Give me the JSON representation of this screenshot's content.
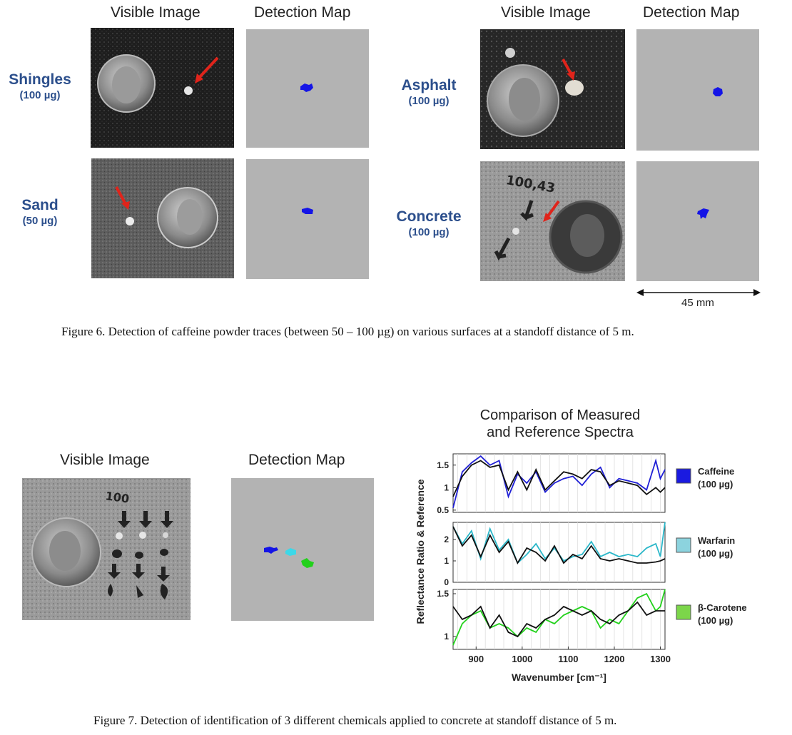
{
  "figure6": {
    "col_headers": [
      "Visible Image",
      "Detection Map",
      "Visible Image",
      "Detection Map"
    ],
    "samples": [
      {
        "name": "Shingles",
        "amount": "(100 µg)"
      },
      {
        "name": "Asphalt",
        "amount": "(100 µg)"
      },
      {
        "name": "Sand",
        "amount": "(50 µg)"
      },
      {
        "name": "Concrete",
        "amount": "(100 µg)"
      }
    ],
    "photo_marks": {
      "concrete_text": "100,43"
    },
    "scale_label": "45 mm",
    "caption": "Figure 6.  Detection of caffeine powder traces (between 50 – 100 µg) on various surfaces at a standoff distance of 5 m.",
    "detect_color": "#1414e6",
    "map_color": "#b3b3b3",
    "arrow_color": "#e0241b"
  },
  "figure7": {
    "visible_label": "Visible Image",
    "detection_label": "Detection Map",
    "photo_marks": {
      "label": "100"
    },
    "caption": "Figure 7.  Detection of identification of 3 different chemicals applied to concrete at standoff distance of 5 m.",
    "chart_data": {
      "type": "line",
      "title": "Comparison of Measured and Reference Spectra",
      "title_lines": [
        "Comparison of Measured",
        "and Reference Spectra"
      ],
      "xlabel": "Wavenumber [cm⁻¹]",
      "ylabel": "Reflectance Ratio & Reference",
      "xlim": [
        850,
        1310
      ],
      "xticks": [
        900,
        1000,
        1100,
        1200,
        1300
      ],
      "grid": true,
      "legend_placement": "right",
      "reference_color": "#111111",
      "panels": [
        {
          "name": "Caffeine",
          "amount": "(100 µg)",
          "color": "#1f1fd6",
          "swatch": "#1a1ae0",
          "ylim": [
            0.45,
            1.75
          ],
          "yticks": [
            "1.5",
            "1",
            "0.5"
          ],
          "ytick_values": [
            1.5,
            1,
            0.5
          ],
          "x": [
            850,
            870,
            890,
            910,
            930,
            950,
            970,
            990,
            1010,
            1030,
            1050,
            1070,
            1090,
            1110,
            1130,
            1150,
            1170,
            1190,
            1210,
            1230,
            1250,
            1270,
            1290,
            1300,
            1310
          ],
          "measured": [
            0.55,
            1.35,
            1.55,
            1.7,
            1.5,
            1.6,
            0.8,
            1.3,
            1.1,
            1.35,
            0.9,
            1.1,
            1.2,
            1.25,
            1.05,
            1.3,
            1.45,
            1.0,
            1.2,
            1.15,
            1.1,
            0.95,
            1.6,
            1.2,
            1.4
          ],
          "reference": [
            0.8,
            1.25,
            1.5,
            1.6,
            1.45,
            1.5,
            0.95,
            1.35,
            0.95,
            1.4,
            0.95,
            1.15,
            1.35,
            1.3,
            1.2,
            1.4,
            1.35,
            1.05,
            1.15,
            1.1,
            1.05,
            0.85,
            1.0,
            0.9,
            1.0
          ]
        },
        {
          "name": "Warfarin",
          "amount": "(100 µg)",
          "color": "#2ab7c9",
          "swatch": "#8cd3de",
          "ylim": [
            0,
            2.8
          ],
          "yticks": [
            "2",
            "1",
            "0"
          ],
          "ytick_values": [
            2,
            1,
            0
          ],
          "x": [
            850,
            870,
            890,
            910,
            930,
            950,
            970,
            990,
            1010,
            1030,
            1050,
            1070,
            1090,
            1110,
            1130,
            1150,
            1170,
            1190,
            1210,
            1230,
            1250,
            1270,
            1290,
            1300,
            1310
          ],
          "measured": [
            2.6,
            1.8,
            2.4,
            1.1,
            2.5,
            1.5,
            2.0,
            0.9,
            1.3,
            1.8,
            1.1,
            1.6,
            1.0,
            1.2,
            1.3,
            1.9,
            1.2,
            1.4,
            1.2,
            1.3,
            1.2,
            1.6,
            1.8,
            1.2,
            2.8
          ],
          "reference": [
            2.6,
            1.7,
            2.2,
            1.2,
            2.2,
            1.4,
            1.9,
            0.9,
            1.6,
            1.4,
            1.0,
            1.7,
            0.9,
            1.3,
            1.1,
            1.7,
            1.1,
            1.0,
            1.1,
            1.0,
            0.9,
            0.9,
            0.95,
            1.0,
            1.1
          ]
        },
        {
          "name": "β-Carotene",
          "amount": "(100 µg)",
          "color": "#22d11b",
          "swatch": "#7cd64a",
          "ylim": [
            0.85,
            1.55
          ],
          "yticks": [
            "1.5",
            "1"
          ],
          "ytick_values": [
            1.5,
            1
          ],
          "x": [
            850,
            870,
            890,
            910,
            930,
            950,
            970,
            990,
            1010,
            1030,
            1050,
            1070,
            1090,
            1110,
            1130,
            1150,
            1170,
            1190,
            1210,
            1230,
            1250,
            1270,
            1290,
            1300,
            1310
          ],
          "measured": [
            0.9,
            1.15,
            1.25,
            1.3,
            1.1,
            1.15,
            1.1,
            1.0,
            1.1,
            1.05,
            1.2,
            1.15,
            1.25,
            1.3,
            1.35,
            1.3,
            1.1,
            1.2,
            1.15,
            1.3,
            1.45,
            1.5,
            1.3,
            1.35,
            1.55
          ],
          "reference": [
            1.35,
            1.2,
            1.25,
            1.35,
            1.1,
            1.25,
            1.05,
            1.0,
            1.15,
            1.1,
            1.2,
            1.25,
            1.35,
            1.3,
            1.25,
            1.3,
            1.2,
            1.15,
            1.25,
            1.3,
            1.4,
            1.25,
            1.3,
            1.3,
            1.3
          ]
        }
      ]
    }
  }
}
